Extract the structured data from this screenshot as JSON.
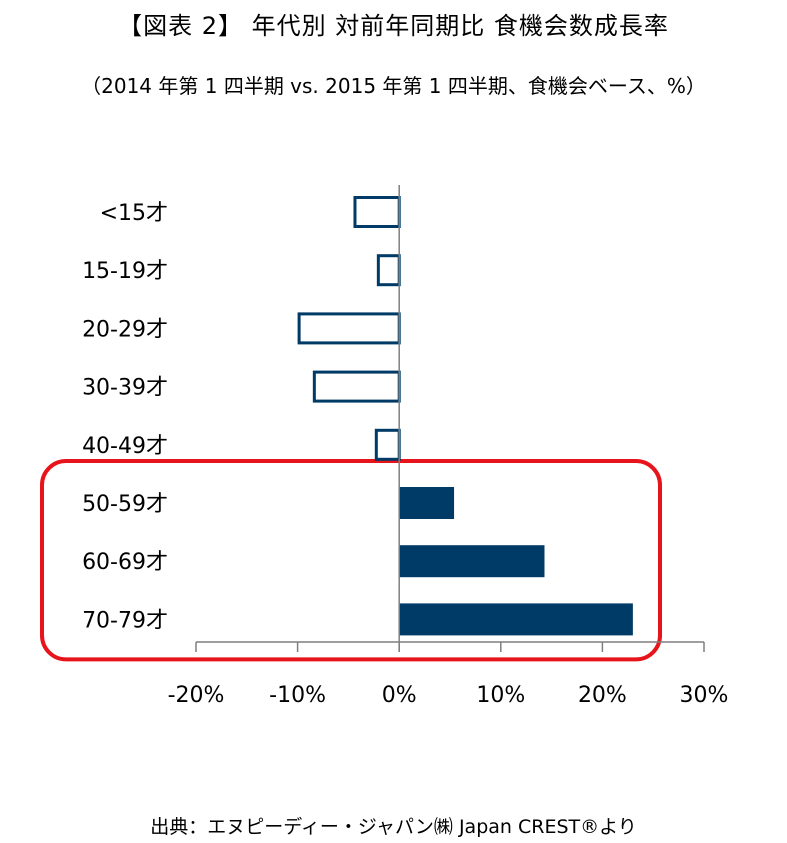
{
  "title": "【図表 2】 年代別 対前年同期比 食機会数成長率",
  "subtitle": "（2014 年第 1 四半期 vs. 2015 年第 1 四半期、食機会ベース、%）",
  "source": "出典：エヌピーディー・ジャパン㈱ Japan CREST®より",
  "colors": {
    "positive_fill": "#003a66",
    "negative_stroke": "#003a66",
    "highlight_box": "#e8141c",
    "axis": "#7f7f7f"
  },
  "chart_data": {
    "type": "bar",
    "orientation": "horizontal",
    "categories": [
      "<15才",
      "15-19才",
      "20-29才",
      "30-39才",
      "40-49才",
      "50-59才",
      "60-69才",
      "70-79才"
    ],
    "values": [
      -4.5,
      -2.2,
      -10,
      -8.5,
      -2.4,
      5.4,
      14.3,
      23.0
    ],
    "xlim": [
      -20,
      30
    ],
    "xticks": [
      "-20%",
      "-10%",
      "0%",
      "10%",
      "20%",
      "30%"
    ],
    "xtick_values": [
      -20,
      -10,
      0,
      10,
      20,
      30
    ],
    "grid": false,
    "highlight_categories": [
      "50-59才",
      "60-69才",
      "70-79才"
    ]
  }
}
